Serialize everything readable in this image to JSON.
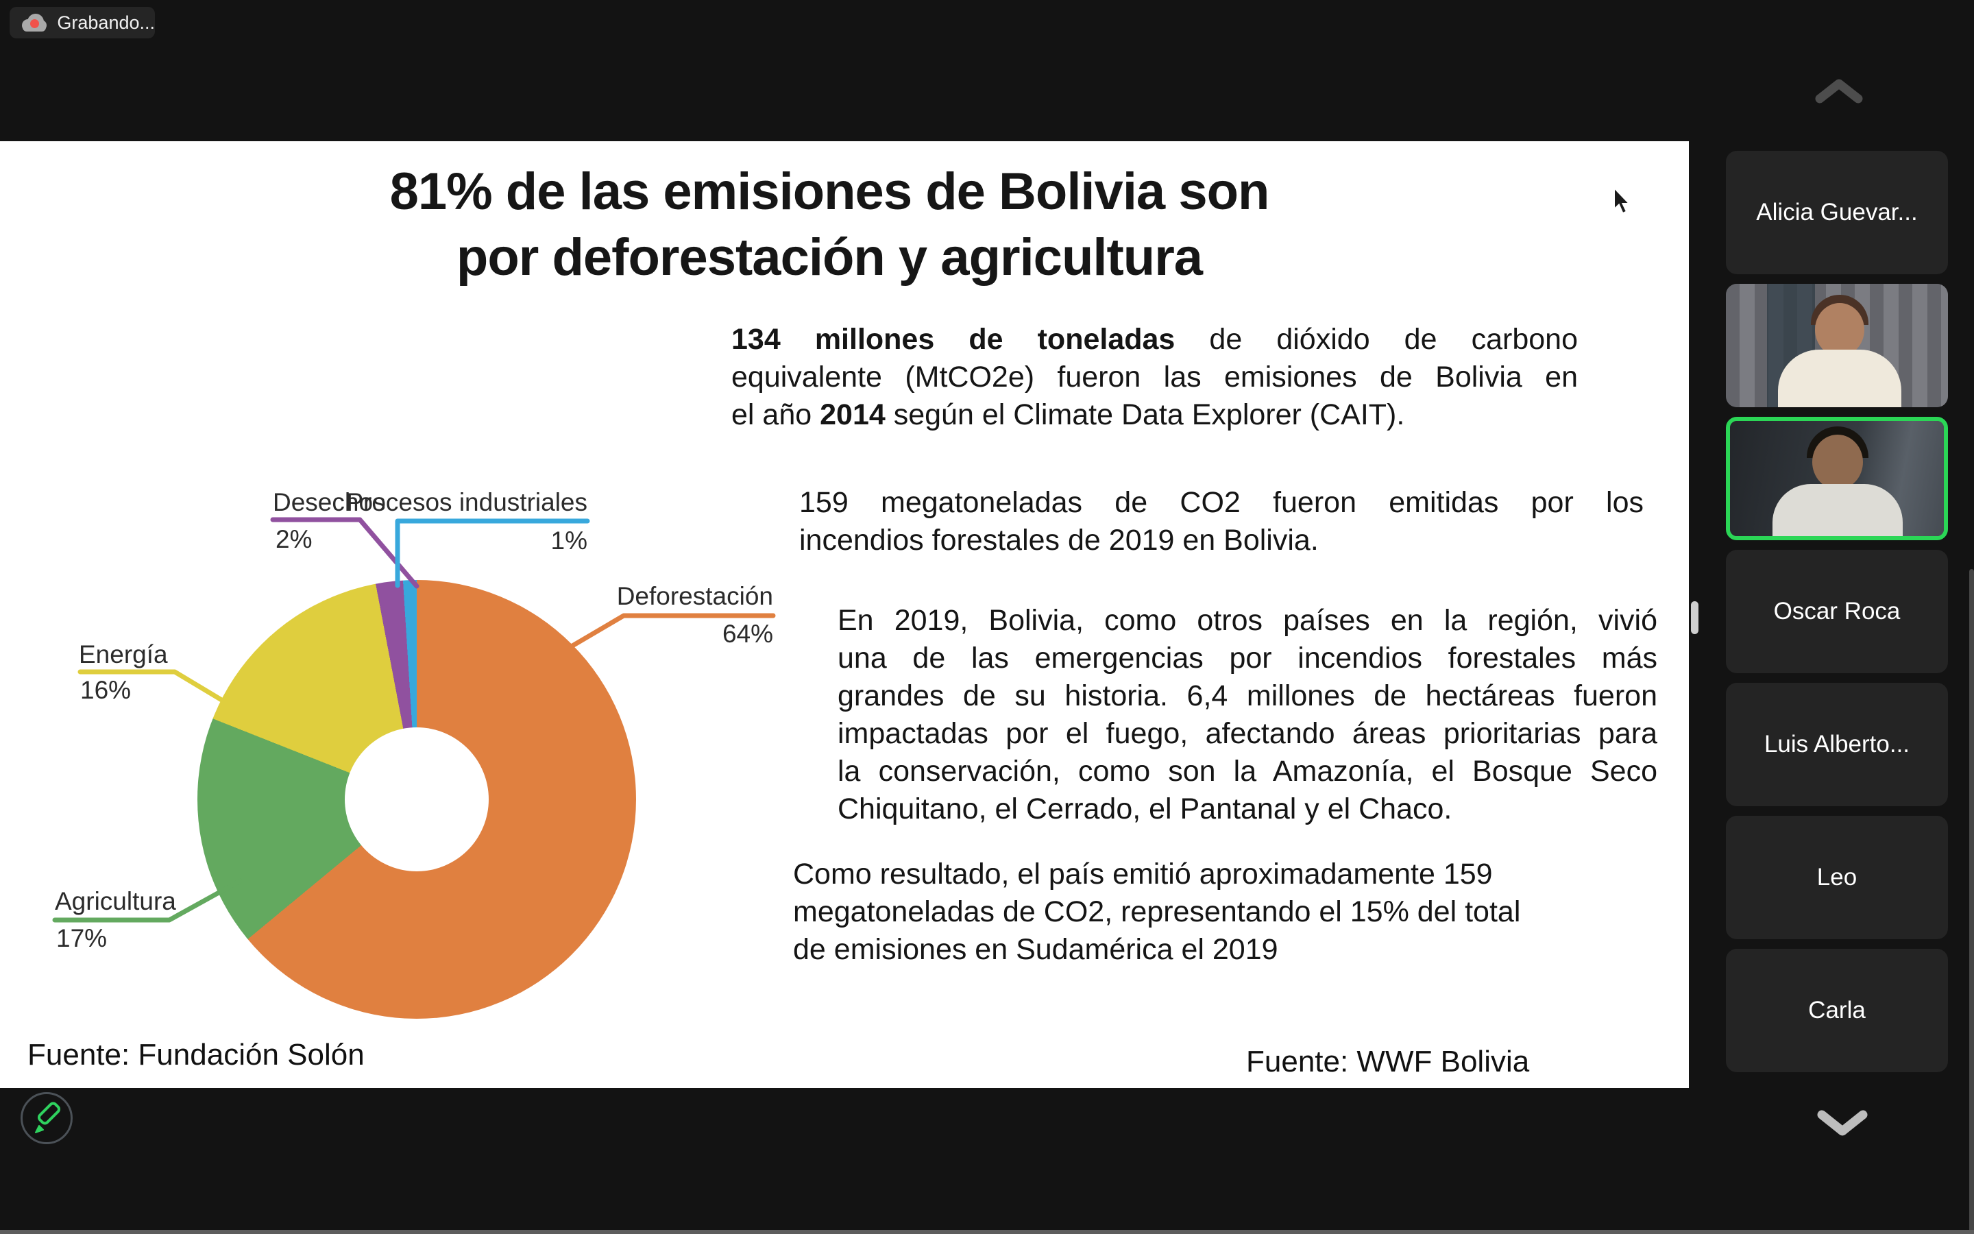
{
  "app": {
    "recording_label": "Grabando..."
  },
  "participants": [
    {
      "label": "Alicia Guevar...",
      "kind": "name"
    },
    {
      "label": "",
      "kind": "video"
    },
    {
      "label": "",
      "kind": "video-active-speaker"
    },
    {
      "label": "Oscar Roca",
      "kind": "name"
    },
    {
      "label": "Luis Alberto...",
      "kind": "name"
    },
    {
      "label": "Leo",
      "kind": "name"
    },
    {
      "label": "Carla",
      "kind": "name"
    }
  ],
  "slide": {
    "title": [
      "81% de las emisiones de Bolivia son",
      "por deforestación y agricultura"
    ],
    "p1_lines": [
      [
        {
          "t": "134 millones de toneladas",
          "b": 1
        },
        {
          "t": " de dióxido de carbono",
          "b": 0
        }
      ],
      [
        {
          "t": "equivalente (MtCO2e) fueron las emisiones de Bolivia en",
          "b": 0
        }
      ],
      [
        {
          "t": "el año ",
          "b": 0
        },
        {
          "t": "2014",
          "b": 1
        },
        {
          "t": " según el Climate Data Explorer (CAIT).",
          "b": 0
        }
      ]
    ],
    "p2_lines": [
      [
        {
          "t": "159 megatoneladas de CO2 fueron emitidas por los",
          "b": 0
        }
      ],
      [
        {
          "t": "incendios forestales de 2019 en Bolivia.",
          "b": 0
        }
      ]
    ],
    "p3_lines": [
      [
        {
          "t": "En 2019, Bolivia, como otros países en la región, vivió",
          "b": 0
        }
      ],
      [
        {
          "t": "una de las emergencias por incendios forestales más",
          "b": 0
        }
      ],
      [
        {
          "t": "grandes de su historia. 6,4 millones de hectáreas fueron",
          "b": 0
        }
      ],
      [
        {
          "t": "impactadas por el fuego, afectando áreas prioritarias para",
          "b": 0
        }
      ],
      [
        {
          "t": "la conservación, como son la Amazonía, el Bosque Seco",
          "b": 0
        }
      ],
      [
        {
          "t": "Chiquitano, el Cerrado, el Pantanal y el Chaco.",
          "b": 0
        }
      ]
    ],
    "p4_lines": [
      [
        {
          "t": "Como resultado, el país emitió aproximadamente 159",
          "b": 0
        }
      ],
      [
        {
          "t": "megatoneladas de CO2, representando el 15% del total",
          "b": 0
        }
      ],
      [
        {
          "t": "de emisiones en Sudamérica el 2019",
          "b": 0
        }
      ]
    ],
    "source_left": "Fuente: Fundación Solón",
    "source_right": "Fuente: WWF Bolivia"
  },
  "chart_data": {
    "type": "pie",
    "donut": true,
    "title": "",
    "categories": [
      "Deforestación",
      "Agricultura",
      "Energía",
      "Desechos",
      "Procesos industriales"
    ],
    "values": [
      64,
      17,
      16,
      2,
      1
    ],
    "unit": "%",
    "colors": [
      "#E08040",
      "#63A95F",
      "#DFCE3E",
      "#90519F",
      "#38A8DC"
    ],
    "start_angle_deg": 0,
    "direction": "clockwise",
    "legend_position": "callout-labels",
    "labels": [
      {
        "name": "Deforestación",
        "value": "64%"
      },
      {
        "name": "Agricultura",
        "value": "17%"
      },
      {
        "name": "Energía",
        "value": "16%"
      },
      {
        "name": "Desechos",
        "value": "2%"
      },
      {
        "name": "Procesos industriales",
        "value": "1%"
      }
    ]
  }
}
